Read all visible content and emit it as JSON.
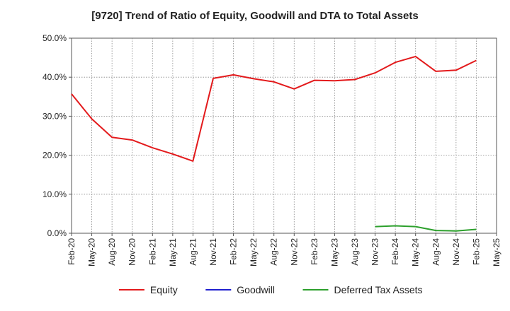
{
  "chart_data": {
    "type": "line",
    "title": "[9720]  Trend of Ratio of Equity, Goodwill and DTA to Total Assets",
    "xlabel": "",
    "ylabel": "",
    "x": [
      "Feb-20",
      "May-20",
      "Aug-20",
      "Nov-20",
      "Feb-21",
      "May-21",
      "Aug-21",
      "Nov-21",
      "Feb-22",
      "May-22",
      "Aug-22",
      "Nov-22",
      "Feb-23",
      "May-23",
      "Aug-23",
      "Nov-23",
      "Feb-24",
      "May-24",
      "Aug-24",
      "Nov-24",
      "Feb-25",
      "May-25"
    ],
    "ylim": [
      0,
      50
    ],
    "yticks": [
      "0.0%",
      "10.0%",
      "20.0%",
      "30.0%",
      "40.0%",
      "50.0%"
    ],
    "grid": true,
    "legend_position": "bottom",
    "series": [
      {
        "name": "Equity",
        "color": "#e31a1c",
        "values": [
          35.7,
          29.3,
          24.6,
          23.9,
          21.9,
          20.3,
          18.5,
          39.7,
          40.6,
          39.6,
          38.8,
          37.0,
          39.2,
          39.1,
          39.4,
          41.1,
          43.8,
          45.3,
          41.5,
          41.8,
          44.3,
          null
        ]
      },
      {
        "name": "Goodwill",
        "color": "#1f1fcf",
        "values": [
          null,
          null,
          null,
          null,
          null,
          null,
          null,
          null,
          null,
          null,
          null,
          null,
          null,
          null,
          null,
          null,
          null,
          null,
          null,
          null,
          null,
          null
        ]
      },
      {
        "name": "Deferred Tax Assets",
        "color": "#2ca02c",
        "values": [
          null,
          null,
          null,
          null,
          null,
          null,
          null,
          null,
          null,
          null,
          null,
          null,
          null,
          null,
          null,
          1.7,
          1.9,
          1.7,
          0.7,
          0.6,
          1.0,
          null
        ]
      }
    ]
  }
}
